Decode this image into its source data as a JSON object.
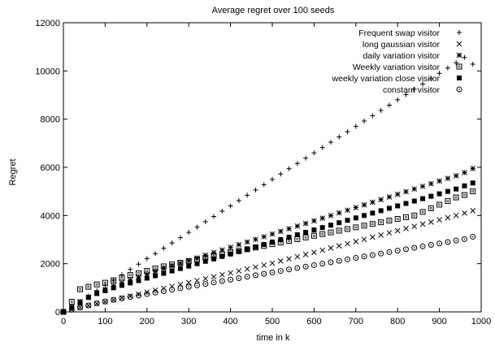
{
  "chart_data": {
    "type": "scatter",
    "title": "Average regret over 100 seeds",
    "xlabel": "time in k",
    "ylabel": "Regret",
    "xlim": [
      0,
      1000
    ],
    "ylim": [
      0,
      12000
    ],
    "xticks": [
      0,
      100,
      200,
      300,
      400,
      500,
      600,
      700,
      800,
      900,
      1000
    ],
    "yticks": [
      0,
      2000,
      4000,
      6000,
      8000,
      10000,
      12000
    ],
    "grid": false,
    "legend_position": "top-right",
    "x": [
      0,
      20,
      40,
      60,
      80,
      100,
      120,
      140,
      160,
      180,
      200,
      220,
      240,
      260,
      280,
      300,
      320,
      340,
      360,
      380,
      400,
      420,
      440,
      460,
      480,
      500,
      520,
      540,
      560,
      580,
      600,
      620,
      640,
      660,
      680,
      700,
      720,
      740,
      760,
      780,
      800,
      820,
      840,
      860,
      880,
      900,
      920,
      940,
      960,
      980
    ],
    "series": [
      {
        "name": "Frequent swap visitor",
        "marker": "plus",
        "values": [
          0,
          220,
          440,
          660,
          880,
          1100,
          1320,
          1540,
          1760,
          1980,
          2210,
          2420,
          2640,
          2860,
          3080,
          3300,
          3520,
          3740,
          3960,
          4180,
          4400,
          4620,
          4840,
          5060,
          5280,
          5500,
          5720,
          5940,
          6160,
          6380,
          6600,
          6820,
          7040,
          7260,
          7480,
          7700,
          7920,
          8140,
          8360,
          8580,
          8800,
          9020,
          9240,
          9460,
          9680,
          9900,
          10120,
          10340,
          10560,
          10280
        ]
      },
      {
        "name": "long gaussian visitor",
        "marker": "cross",
        "values": [
          0,
          90,
          180,
          260,
          340,
          420,
          500,
          580,
          660,
          740,
          820,
          900,
          980,
          1060,
          1140,
          1220,
          1300,
          1380,
          1460,
          1540,
          1620,
          1700,
          1780,
          1860,
          1940,
          2020,
          2110,
          2200,
          2290,
          2380,
          2470,
          2560,
          2650,
          2740,
          2830,
          2920,
          3010,
          3100,
          3190,
          3280,
          3370,
          3460,
          3550,
          3640,
          3730,
          3820,
          3910,
          4000,
          4100,
          4200
        ]
      },
      {
        "name": "daily variation visitor",
        "marker": "asterisk",
        "values": [
          0,
          200,
          430,
          620,
          790,
          940,
          1080,
          1200,
          1320,
          1440,
          1560,
          1680,
          1800,
          1910,
          2020,
          2130,
          2240,
          2350,
          2460,
          2570,
          2680,
          2790,
          2900,
          3010,
          3120,
          3230,
          3340,
          3450,
          3560,
          3670,
          3780,
          3890,
          4000,
          4110,
          4220,
          4330,
          4440,
          4550,
          4660,
          4770,
          4880,
          4990,
          5100,
          5210,
          5320,
          5430,
          5540,
          5650,
          5780,
          5950
        ]
      },
      {
        "name": "Weekly variation visitor",
        "marker": "square-open",
        "values": [
          0,
          420,
          940,
          1040,
          1140,
          1210,
          1310,
          1420,
          1530,
          1600,
          1700,
          1800,
          1890,
          1970,
          2040,
          2110,
          2180,
          2250,
          2320,
          2390,
          2460,
          2530,
          2600,
          2670,
          2740,
          2810,
          2880,
          2950,
          3020,
          3090,
          3160,
          3230,
          3300,
          3370,
          3440,
          3510,
          3580,
          3650,
          3720,
          3790,
          3860,
          3930,
          4000,
          4150,
          4300,
          4450,
          4600,
          4750,
          4850,
          5000
        ]
      },
      {
        "name": "weekly variation close visitor",
        "marker": "square-filled",
        "values": [
          0,
          180,
          380,
          600,
          760,
          880,
          1000,
          1100,
          1200,
          1300,
          1400,
          1500,
          1600,
          1700,
          1800,
          1900,
          2000,
          2100,
          2200,
          2300,
          2400,
          2500,
          2600,
          2700,
          2800,
          2900,
          3000,
          3100,
          3200,
          3300,
          3400,
          3500,
          3600,
          3700,
          3800,
          3900,
          4000,
          4100,
          4200,
          4300,
          4400,
          4500,
          4600,
          4700,
          4800,
          4900,
          5000,
          5100,
          5230,
          5350
        ]
      },
      {
        "name": "constant visitor",
        "marker": "circle-open",
        "values": [
          0,
          90,
          180,
          270,
          360,
          430,
          500,
          560,
          620,
          680,
          740,
          800,
          860,
          920,
          980,
          1040,
          1100,
          1160,
          1220,
          1280,
          1340,
          1400,
          1460,
          1520,
          1580,
          1640,
          1700,
          1760,
          1820,
          1880,
          1940,
          2000,
          2060,
          2120,
          2180,
          2240,
          2300,
          2360,
          2420,
          2480,
          2540,
          2600,
          2660,
          2720,
          2780,
          2840,
          2900,
          2960,
          3020,
          3120
        ]
      }
    ]
  }
}
